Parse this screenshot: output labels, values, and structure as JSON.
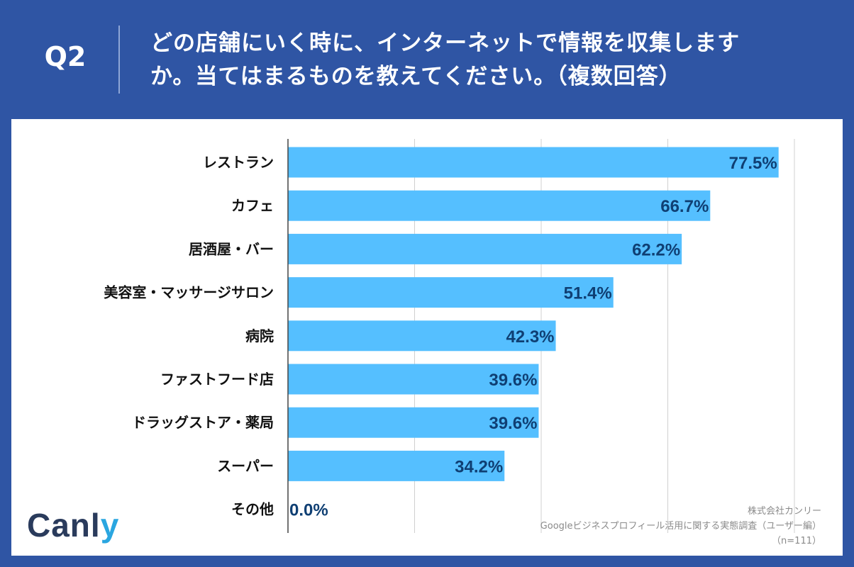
{
  "header": {
    "question_no": "Q2",
    "question_line1": "どの店舗にいく時に、インターネットで情報を収集します",
    "question_line2": "か。当てはまるものを教えてください。（複数回答）"
  },
  "chart_data": {
    "type": "bar",
    "orientation": "horizontal",
    "categories": [
      "レストラン",
      "カフェ",
      "居酒屋・バー",
      "美容室・マッサージサロン",
      "病院",
      "ファストフード店",
      "ドラッグストア・薬局",
      "スーパー",
      "その他"
    ],
    "values": [
      77.5,
      66.7,
      62.2,
      51.4,
      42.3,
      39.6,
      39.6,
      34.2,
      0.0
    ],
    "value_labels": [
      "77.5%",
      "66.7%",
      "62.2%",
      "51.4%",
      "42.3%",
      "39.6%",
      "39.6%",
      "34.2%",
      "0.0%"
    ],
    "xlim": [
      0,
      80
    ],
    "grid": true,
    "unit": "%",
    "title": "",
    "xlabel": "",
    "ylabel": ""
  },
  "brand": {
    "logo_main": "Canl",
    "logo_accent": "y"
  },
  "source": {
    "line1": "株式会社カンリー",
    "line2": "Googleビジネスプロフィール活用に関する実態調査（ユーザー編）",
    "line3": "（n=111）"
  },
  "colors": {
    "background": "#2f55a4",
    "bar": "#55bfff",
    "value_text": "#0f3f73",
    "grid": "#d0d0d0",
    "axis": "#444444"
  }
}
